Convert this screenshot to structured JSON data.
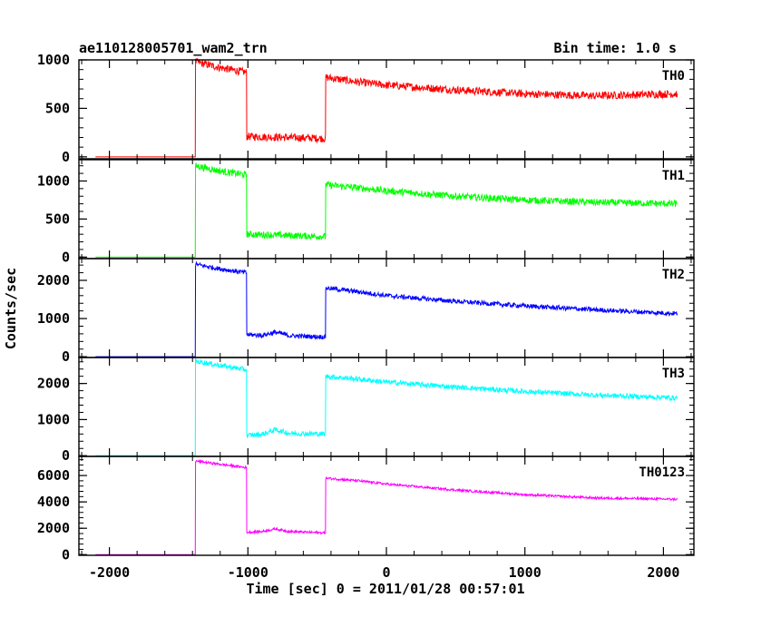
{
  "header": {
    "title": "ae110128005701_wam2_trn",
    "bin_time": "Bin time: 1.0 s"
  },
  "chart_data": {
    "type": "line",
    "xlabel": "Time [sec] 0 = 2011/01/28 00:57:01",
    "ylabel": "Counts/sec",
    "xlim": [
      -2220,
      2220
    ],
    "x_ticks": [
      -2000,
      -1000,
      0,
      1000,
      2000
    ],
    "panels": [
      {
        "name": "TH0",
        "color": "#ff0000",
        "ylim": [
          -20,
          1000
        ],
        "y_ticks": [
          0,
          500,
          1000
        ],
        "x": [
          -2100,
          -1380,
          -1378,
          -1200,
          -1010,
          -1008,
          -440,
          -438,
          -200,
          0,
          500,
          1000,
          1500,
          2100
        ],
        "y": [
          0,
          0,
          980,
          920,
          870,
          210,
          190,
          820,
          770,
          740,
          690,
          650,
          630,
          650
        ],
        "noise": 40
      },
      {
        "name": "TH1",
        "color": "#00ff00",
        "ylim": [
          -20,
          1280
        ],
        "y_ticks": [
          0,
          500,
          1000
        ],
        "x": [
          -2100,
          -1380,
          -1378,
          -1200,
          -1010,
          -1008,
          -440,
          -438,
          -200,
          0,
          500,
          1000,
          1500,
          2100
        ],
        "y": [
          0,
          0,
          1200,
          1130,
          1080,
          300,
          270,
          950,
          910,
          870,
          800,
          750,
          720,
          700
        ],
        "noise": 45
      },
      {
        "name": "TH2",
        "color": "#0000ff",
        "ylim": [
          -20,
          2570
        ],
        "y_ticks": [
          0,
          1000,
          2000
        ],
        "x": [
          -2100,
          -1380,
          -1378,
          -1200,
          -1010,
          -1008,
          -900,
          -800,
          -700,
          -440,
          -438,
          -200,
          0,
          500,
          1000,
          1500,
          2100
        ],
        "y": [
          0,
          0,
          2420,
          2300,
          2200,
          580,
          560,
          640,
          550,
          520,
          1800,
          1700,
          1600,
          1450,
          1330,
          1230,
          1130
        ],
        "noise": 60
      },
      {
        "name": "TH3",
        "color": "#00ffff",
        "ylim": [
          -20,
          2720
        ],
        "y_ticks": [
          0,
          1000,
          2000
        ],
        "x": [
          -2100,
          -1380,
          -1378,
          -1200,
          -1010,
          -1008,
          -900,
          -800,
          -700,
          -440,
          -438,
          -200,
          0,
          500,
          1000,
          1500,
          2100
        ],
        "y": [
          0,
          0,
          2620,
          2500,
          2380,
          560,
          590,
          720,
          620,
          600,
          2200,
          2120,
          2040,
          1900,
          1780,
          1680,
          1600
        ],
        "noise": 70
      },
      {
        "name": "TH0123",
        "color": "#ff00ff",
        "ylim": [
          -50,
          7450
        ],
        "y_ticks": [
          0,
          2000,
          4000,
          6000
        ],
        "x": [
          -2100,
          -1380,
          -1378,
          -1200,
          -1010,
          -1008,
          -900,
          -800,
          -700,
          -440,
          -438,
          -200,
          0,
          500,
          1000,
          1500,
          2100
        ],
        "y": [
          0,
          0,
          7100,
          6850,
          6600,
          1700,
          1750,
          1950,
          1750,
          1650,
          5800,
          5600,
          5350,
          4900,
          4550,
          4300,
          4200
        ],
        "noise": 90
      }
    ]
  }
}
